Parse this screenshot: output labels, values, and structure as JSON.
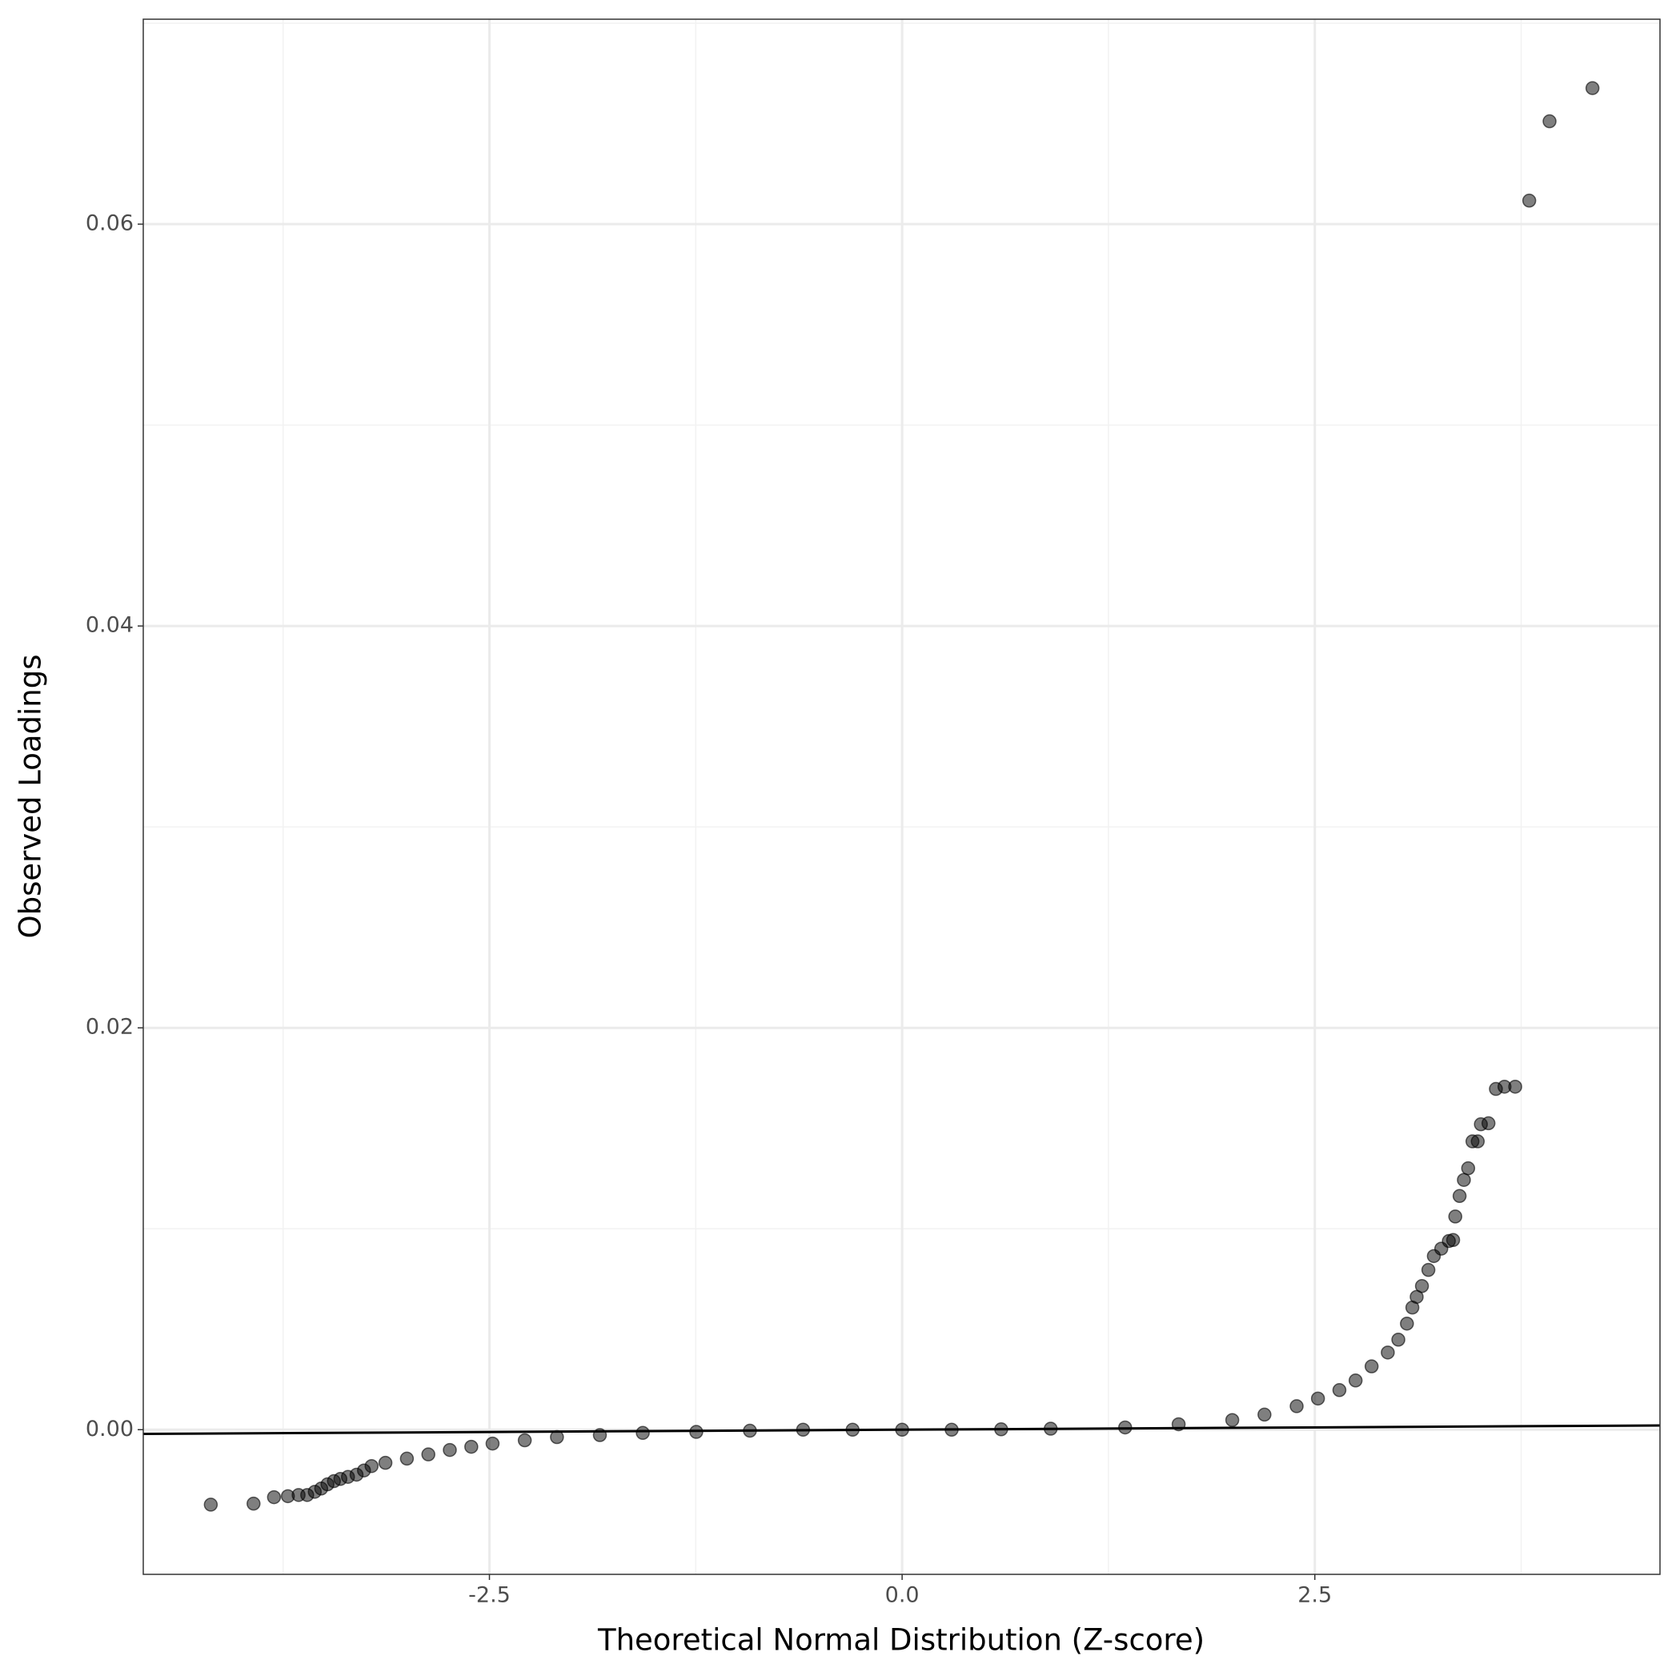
{
  "chart_data": {
    "type": "scatter",
    "x_label": "Theoretical Normal Distribution (Z-score)",
    "y_label": "Observed Loadings",
    "xlim": [
      -4.597,
      4.591
    ],
    "ylim": [
      -0.0072,
      0.0702
    ],
    "xticks": [
      {
        "value": -2.5,
        "label": "-2.5"
      },
      {
        "value": 0,
        "label": "0.0"
      },
      {
        "value": 2.5,
        "label": "2.5"
      }
    ],
    "yticks": [
      {
        "value": 0,
        "label": "0.00"
      },
      {
        "value": 0.02,
        "label": "0.02"
      },
      {
        "value": 0.04,
        "label": "0.04"
      },
      {
        "value": 0.06,
        "label": "0.06"
      }
    ],
    "grid": true,
    "color": "#000000",
    "reference_line": {
      "x": [
        -4.597,
        4.591
      ],
      "y": [
        -0.00021,
        0.00021
      ]
    },
    "x": [
      -4.188,
      -3.929,
      -3.805,
      -3.721,
      -3.656,
      -3.604,
      -3.558,
      -3.519,
      -3.481,
      -3.442,
      -3.403,
      -3.357,
      -3.305,
      -3.26,
      -3.214,
      -3.13,
      -3.0,
      -2.87,
      -2.74,
      -2.61,
      -2.481,
      -2.286,
      -2.091,
      -1.831,
      -1.571,
      -1.247,
      -0.922,
      -0.6,
      -0.3,
      0,
      0.3,
      0.6,
      0.9,
      1.351,
      1.675,
      2.0,
      2.195,
      2.39,
      2.519,
      2.649,
      2.747,
      2.844,
      2.942,
      3.006,
      3.058,
      3.091,
      3.117,
      3.149,
      3.188,
      3.221,
      3.266,
      3.312,
      3.338,
      3.351,
      3.377,
      3.403,
      3.429,
      3.455,
      3.487,
      3.506,
      3.552,
      3.597,
      3.649,
      3.714,
      3.799,
      3.922,
      4.182
    ],
    "values": [
      -0.00373,
      -0.00368,
      -0.00336,
      -0.00331,
      -0.00325,
      -0.00325,
      -0.00309,
      -0.00293,
      -0.00272,
      -0.00256,
      -0.00245,
      -0.00235,
      -0.00224,
      -0.00203,
      -0.00181,
      -0.00165,
      -0.00144,
      -0.00123,
      -0.00101,
      -0.00085,
      -0.00069,
      -0.00053,
      -0.00037,
      -0.00027,
      -0.00016,
      -0.00011,
      -5e-05,
      0,
      0,
      0,
      0,
      2e-05,
      5e-05,
      0.00011,
      0.00027,
      0.00048,
      0.00075,
      0.00117,
      0.00155,
      0.00197,
      0.00245,
      0.00315,
      0.00384,
      0.00448,
      0.00528,
      0.00608,
      0.00661,
      0.00715,
      0.00795,
      0.00864,
      0.00901,
      0.00939,
      0.00944,
      0.01061,
      0.01163,
      0.01243,
      0.01301,
      0.01435,
      0.01435,
      0.0152,
      0.01525,
      0.01696,
      0.01707,
      0.01707,
      0.06117,
      0.06512,
      0.06677
    ]
  }
}
